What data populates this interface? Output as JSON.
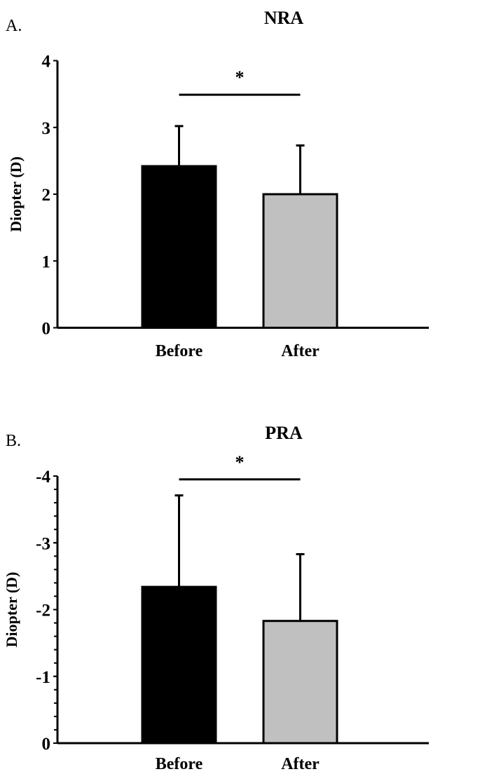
{
  "chart_data": [
    {
      "type": "bar",
      "panel_label": "A.",
      "title": "NRA",
      "ylabel": "Diopter (D)",
      "categories": [
        "Before",
        "After"
      ],
      "values": [
        2.42,
        2.0
      ],
      "error_upper": [
        3.02,
        2.73
      ],
      "colors": [
        "#000000",
        "#c0c0c0"
      ],
      "ylim": [
        0,
        4
      ],
      "yticks": [
        0,
        1,
        2,
        3,
        4
      ],
      "ytick_labels": [
        "0",
        "1",
        "2",
        "3",
        "4"
      ],
      "minor_ticks": false,
      "significance": {
        "between": [
          "Before",
          "After"
        ],
        "marker": "*",
        "level": 3.49
      },
      "grid": false
    },
    {
      "type": "bar",
      "panel_label": "B.",
      "title": "PRA",
      "ylabel": "Diopter (D)",
      "categories": [
        "Before",
        "After"
      ],
      "values": [
        -2.34,
        -1.83
      ],
      "error_upper": [
        -3.71,
        -2.83
      ],
      "colors": [
        "#000000",
        "#c0c0c0"
      ],
      "ylim": [
        0,
        -4
      ],
      "yticks": [
        0,
        -1,
        -2,
        -3,
        -4
      ],
      "ytick_labels": [
        "0",
        "-1",
        "-2",
        "-3",
        "-4"
      ],
      "minor_ticks": true,
      "minor_step": 0.2,
      "significance": {
        "between": [
          "Before",
          "After"
        ],
        "marker": "*",
        "level": -3.95
      },
      "grid": false
    }
  ]
}
